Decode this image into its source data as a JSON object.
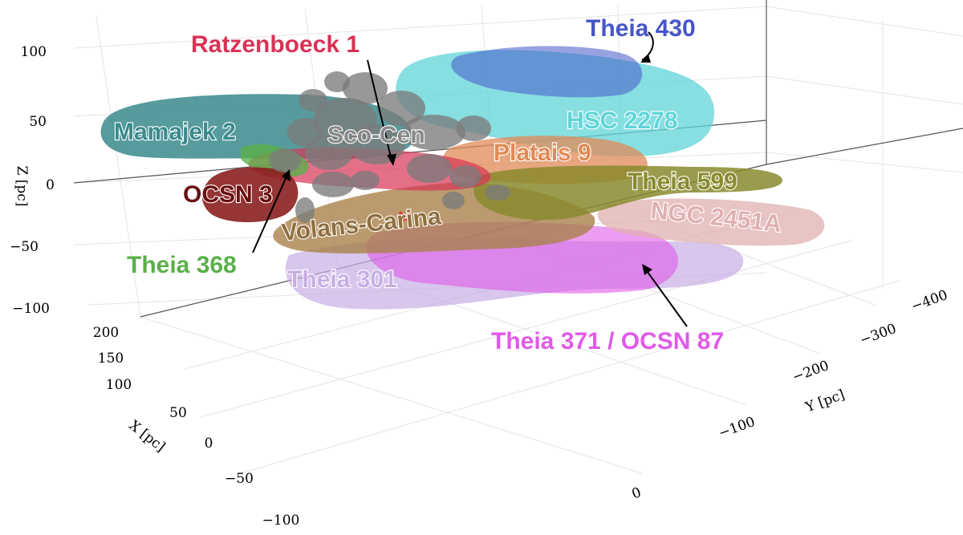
{
  "chart_data": {
    "type": "scatter3d",
    "axes": {
      "x": {
        "label": "X [pc]",
        "ticks": [
          "200",
          "150",
          "100",
          "50",
          "0",
          "−50",
          "−100"
        ]
      },
      "y": {
        "label": "Y [pc]",
        "ticks": [
          "−400",
          "−300",
          "−200",
          "−100",
          "0"
        ]
      },
      "z": {
        "label": "Z [pc]",
        "ticks": [
          "100",
          "50",
          "0",
          "−50",
          "−100"
        ]
      }
    },
    "clusters": [
      {
        "key": "theia430",
        "name": "Theia 430",
        "color": "#4656c8"
      },
      {
        "key": "ratz1",
        "name": "Ratzenboeck 1",
        "color": "#d83355"
      },
      {
        "key": "hsc2278",
        "name": "HSC 2278",
        "color": "#5fd4d8"
      },
      {
        "key": "mamajek2",
        "name": "Mamajek 2",
        "color": "#3a8a8c"
      },
      {
        "key": "scocen",
        "name": "Sco-Cen",
        "color": "#7b7b7b"
      },
      {
        "key": "platais9",
        "name": "Platais 9",
        "color": "#e08a55"
      },
      {
        "key": "theia599",
        "name": "Theia 599",
        "color": "#8a8a2e"
      },
      {
        "key": "ocsn3",
        "name": "OCSN 3",
        "color": "#8a1f1f"
      },
      {
        "key": "ngc2451a",
        "name": "NGC 2451A",
        "color": "#e0b0b0"
      },
      {
        "key": "volans",
        "name": "Volans-Carina",
        "color": "#a9814a"
      },
      {
        "key": "theia368",
        "name": "Theia 368",
        "color": "#5ab04a"
      },
      {
        "key": "theia301",
        "name": "Theia 301",
        "color": "#c7aee5"
      },
      {
        "key": "theia371",
        "name": "Theia 371 / OCSN 87",
        "color": "#e05ae8"
      }
    ],
    "marker": {
      "symbol": "×",
      "color": "#e03a3a"
    }
  }
}
